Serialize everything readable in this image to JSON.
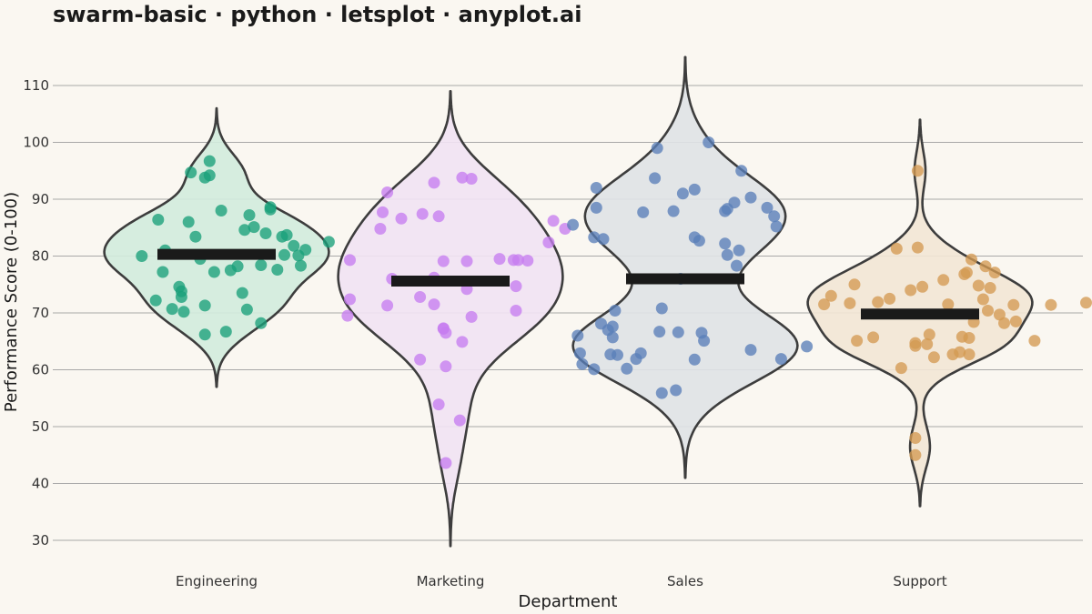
{
  "chart_data": {
    "type": "violin",
    "title": "swarm-basic · python · letsplot · anyplot.ai",
    "xlabel": "Department",
    "ylabel": "Performance Score (0-100)",
    "ylim": [
      25,
      120
    ],
    "yticks": [
      30,
      40,
      50,
      60,
      70,
      80,
      90,
      100,
      110
    ],
    "grid": true,
    "categories": [
      "Engineering",
      "Marketing",
      "Sales",
      "Support"
    ],
    "series": [
      {
        "category": "Engineering",
        "color": "#1AA07A",
        "fill": "#D2EBDD",
        "mean": 80.3,
        "range": [
          57,
          106
        ],
        "points": [
          [
            -0.32,
            80
          ],
          [
            -0.26,
            72.2
          ],
          [
            -0.25,
            86.4
          ],
          [
            -0.23,
            77.2
          ],
          [
            -0.22,
            81
          ],
          [
            -0.19,
            70.7
          ],
          [
            -0.16,
            74.6
          ],
          [
            -0.15,
            73.8
          ],
          [
            -0.15,
            72.8
          ],
          [
            -0.14,
            70.2
          ],
          [
            -0.12,
            86
          ],
          [
            -0.11,
            94.7
          ],
          [
            -0.09,
            83.4
          ],
          [
            -0.07,
            79.5
          ],
          [
            -0.05,
            71.3
          ],
          [
            -0.05,
            66.2
          ],
          [
            -0.05,
            93.8
          ],
          [
            -0.03,
            94.2
          ],
          [
            -0.03,
            96.7
          ],
          [
            -0.01,
            77.2
          ],
          [
            0.02,
            88
          ],
          [
            0.04,
            66.7
          ],
          [
            0.06,
            77.5
          ],
          [
            0.09,
            78.2
          ],
          [
            0.11,
            73.5
          ],
          [
            0.12,
            84.6
          ],
          [
            0.13,
            70.6
          ],
          [
            0.14,
            87.2
          ],
          [
            0.16,
            85.1
          ],
          [
            0.19,
            78.4
          ],
          [
            0.19,
            68.2
          ],
          [
            0.21,
            84
          ],
          [
            0.23,
            88.2
          ],
          [
            0.23,
            88.6
          ],
          [
            0.26,
            77.6
          ],
          [
            0.28,
            83.4
          ],
          [
            0.29,
            80.2
          ],
          [
            0.3,
            83.7
          ],
          [
            0.33,
            81.8
          ],
          [
            0.35,
            80.1
          ],
          [
            0.36,
            78.3
          ],
          [
            0.38,
            81.1
          ],
          [
            0.48,
            82.5
          ]
        ]
      },
      {
        "category": "Marketing",
        "color": "#C77DF0",
        "fill": "#F1E2F3",
        "mean": 75.6,
        "range": [
          29,
          109
        ],
        "points": [
          [
            -0.44,
            69.5
          ],
          [
            -0.43,
            72.4
          ],
          [
            -0.43,
            79.3
          ],
          [
            -0.3,
            84.8
          ],
          [
            -0.29,
            87.7
          ],
          [
            -0.27,
            91.2
          ],
          [
            -0.27,
            71.3
          ],
          [
            -0.25,
            76
          ],
          [
            -0.21,
            86.6
          ],
          [
            -0.13,
            72.8
          ],
          [
            -0.13,
            61.8
          ],
          [
            -0.12,
            87.4
          ],
          [
            -0.07,
            92.9
          ],
          [
            -0.07,
            76.2
          ],
          [
            -0.07,
            71.5
          ],
          [
            -0.05,
            87
          ],
          [
            -0.05,
            53.9
          ],
          [
            -0.03,
            67.3
          ],
          [
            -0.03,
            79.1
          ],
          [
            -0.03,
            67.2
          ],
          [
            -0.02,
            66.5
          ],
          [
            -0.02,
            60.6
          ],
          [
            -0.02,
            43.6
          ],
          [
            0.04,
            51.1
          ],
          [
            0.05,
            93.8
          ],
          [
            0.05,
            64.9
          ],
          [
            0.07,
            74.2
          ],
          [
            0.07,
            79.1
          ],
          [
            0.09,
            69.3
          ],
          [
            0.09,
            93.6
          ],
          [
            0.21,
            79.5
          ],
          [
            0.27,
            79.3
          ],
          [
            0.28,
            74.7
          ],
          [
            0.28,
            70.4
          ],
          [
            0.29,
            79.3
          ],
          [
            0.33,
            79.2
          ],
          [
            0.42,
            82.4
          ],
          [
            0.44,
            86.2
          ],
          [
            0.49,
            84.8
          ]
        ]
      },
      {
        "category": "Sales",
        "color": "#5A7FB8",
        "fill": "#DFE2E6",
        "mean": 76,
        "range": [
          41,
          115
        ],
        "points": [
          [
            -0.48,
            85.5
          ],
          [
            -0.46,
            66
          ],
          [
            -0.45,
            62.9
          ],
          [
            -0.44,
            61
          ],
          [
            -0.39,
            60.1
          ],
          [
            -0.39,
            83.3
          ],
          [
            -0.38,
            88.5
          ],
          [
            -0.38,
            92
          ],
          [
            -0.36,
            68.1
          ],
          [
            -0.35,
            83
          ],
          [
            -0.33,
            67
          ],
          [
            -0.32,
            62.7
          ],
          [
            -0.31,
            67.6
          ],
          [
            -0.31,
            65.7
          ],
          [
            -0.3,
            70.4
          ],
          [
            -0.29,
            62.6
          ],
          [
            -0.25,
            60.2
          ],
          [
            -0.21,
            61.9
          ],
          [
            -0.19,
            62.9
          ],
          [
            -0.18,
            87.7
          ],
          [
            -0.13,
            93.7
          ],
          [
            -0.12,
            99
          ],
          [
            -0.11,
            66.7
          ],
          [
            -0.1,
            70.8
          ],
          [
            -0.1,
            55.9
          ],
          [
            -0.05,
            87.9
          ],
          [
            -0.04,
            56.4
          ],
          [
            -0.03,
            66.6
          ],
          [
            -0.02,
            76
          ],
          [
            -0.01,
            91
          ],
          [
            0.04,
            61.8
          ],
          [
            0.04,
            83.3
          ],
          [
            0.04,
            91.7
          ],
          [
            0.06,
            82.7
          ],
          [
            0.07,
            66.5
          ],
          [
            0.08,
            65.1
          ],
          [
            0.1,
            100
          ],
          [
            0.17,
            87.9
          ],
          [
            0.17,
            82.2
          ],
          [
            0.18,
            80.2
          ],
          [
            0.18,
            88.3
          ],
          [
            0.21,
            89.4
          ],
          [
            0.22,
            78.3
          ],
          [
            0.23,
            81
          ],
          [
            0.24,
            95
          ],
          [
            0.28,
            63.5
          ],
          [
            0.28,
            90.3
          ],
          [
            0.35,
            88.5
          ],
          [
            0.38,
            87
          ],
          [
            0.39,
            85.2
          ],
          [
            0.41,
            61.9
          ],
          [
            0.52,
            64.1
          ]
        ]
      },
      {
        "category": "Support",
        "color": "#D39A52",
        "fill": "#F2E6D5",
        "mean": 69.8,
        "range": [
          36,
          104
        ],
        "points": [
          [
            -0.41,
            71.5
          ],
          [
            -0.38,
            73
          ],
          [
            -0.3,
            71.7
          ],
          [
            -0.28,
            75
          ],
          [
            -0.27,
            65.1
          ],
          [
            -0.2,
            65.7
          ],
          [
            -0.18,
            71.9
          ],
          [
            -0.13,
            72.5
          ],
          [
            -0.1,
            81.3
          ],
          [
            -0.08,
            60.3
          ],
          [
            -0.04,
            74
          ],
          [
            -0.02,
            64.7
          ],
          [
            -0.02,
            64.2
          ],
          [
            -0.02,
            48
          ],
          [
            -0.02,
            45
          ],
          [
            -0.01,
            95
          ],
          [
            -0.01,
            81.5
          ],
          [
            0.01,
            74.6
          ],
          [
            0.03,
            64.5
          ],
          [
            0.04,
            66.2
          ],
          [
            0.06,
            62.2
          ],
          [
            0.1,
            75.8
          ],
          [
            0.12,
            71.5
          ],
          [
            0.14,
            62.7
          ],
          [
            0.17,
            63.1
          ],
          [
            0.18,
            65.8
          ],
          [
            0.19,
            76.8
          ],
          [
            0.2,
            77.1
          ],
          [
            0.21,
            62.7
          ],
          [
            0.21,
            65.6
          ],
          [
            0.22,
            79.4
          ],
          [
            0.23,
            68.4
          ],
          [
            0.25,
            74.8
          ],
          [
            0.27,
            72.4
          ],
          [
            0.28,
            78.2
          ],
          [
            0.29,
            70.4
          ],
          [
            0.3,
            74.4
          ],
          [
            0.32,
            77.1
          ],
          [
            0.34,
            69.7
          ],
          [
            0.36,
            68.2
          ],
          [
            0.4,
            71.4
          ],
          [
            0.41,
            68.5
          ],
          [
            0.49,
            65.1
          ],
          [
            0.56,
            71.4
          ],
          [
            0.71,
            71.8
          ]
        ]
      }
    ]
  }
}
